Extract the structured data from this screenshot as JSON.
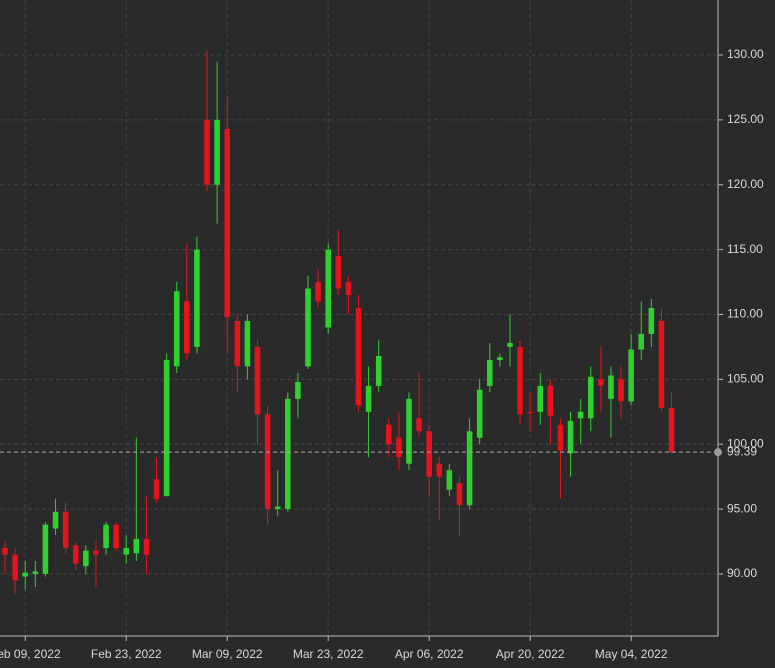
{
  "chart_data": {
    "type": "candlestick",
    "up_color": "#2fd12f",
    "down_color": "#e3141b",
    "open": [
      92.0,
      91.5,
      89.8,
      90.0,
      90.0,
      93.5,
      94.8,
      92.2,
      90.6,
      91.8,
      92.0,
      93.8,
      91.5,
      91.6,
      92.7,
      97.3,
      96.0,
      106.0,
      111.0,
      107.5,
      125.0,
      120.0,
      124.3,
      109.5,
      106.0,
      107.5,
      102.3,
      95.0,
      95.0,
      103.5,
      106.0,
      112.5,
      109.0,
      114.5,
      112.5,
      110.5,
      102.5,
      104.5,
      101.5,
      100.5,
      98.5,
      102.0,
      101.0,
      98.5,
      96.5,
      97.0,
      95.3,
      100.5,
      104.5,
      106.5,
      107.5,
      107.5,
      102.5,
      102.5,
      104.5,
      101.5,
      99.3,
      102.0,
      102.0,
      105.0,
      103.5,
      105.0,
      103.3,
      107.3,
      108.5,
      109.5,
      102.8
    ],
    "high": [
      92.5,
      92.0,
      91.0,
      91.0,
      94.0,
      95.8,
      95.5,
      92.5,
      92.2,
      92.5,
      94.0,
      94.0,
      93.0,
      100.5,
      96.0,
      99.0,
      107.0,
      112.5,
      115.5,
      116.0,
      130.3,
      129.5,
      126.8,
      110.0,
      110.0,
      108.0,
      103.0,
      98.0,
      104.0,
      105.5,
      113.0,
      113.5,
      115.5,
      116.5,
      113.0,
      111.5,
      106.0,
      108.0,
      102.0,
      102.5,
      104.0,
      105.5,
      101.5,
      99.0,
      98.5,
      97.5,
      102.0,
      105.0,
      107.8,
      107.0,
      110.0,
      108.0,
      104.0,
      105.5,
      105.0,
      102.0,
      102.5,
      103.5,
      106.0,
      107.5,
      106.0,
      106.0,
      108.5,
      111.0,
      111.2,
      110.5,
      104.0
    ],
    "low": [
      90.0,
      88.5,
      88.8,
      89.0,
      89.8,
      93.0,
      91.5,
      90.3,
      90.0,
      89.0,
      91.5,
      91.8,
      90.8,
      91.0,
      90.0,
      95.5,
      96.0,
      105.5,
      106.5,
      107.0,
      119.5,
      117.0,
      107.0,
      104.0,
      105.0,
      100.0,
      93.8,
      94.5,
      94.8,
      102.0,
      105.8,
      110.5,
      108.5,
      111.5,
      110.0,
      102.5,
      99.0,
      104.0,
      99.0,
      98.0,
      98.0,
      100.5,
      96.0,
      94.2,
      96.0,
      93.0,
      95.0,
      100.0,
      104.0,
      106.0,
      106.0,
      101.5,
      101.0,
      101.5,
      100.0,
      95.8,
      97.5,
      100.0,
      101.0,
      102.5,
      100.5,
      102.0,
      103.0,
      106.5,
      107.5,
      102.5,
      99.3
    ],
    "close": [
      91.5,
      89.5,
      90.1,
      90.2,
      93.8,
      94.8,
      92.0,
      90.8,
      91.8,
      91.5,
      93.8,
      92.0,
      92.0,
      92.7,
      91.5,
      95.8,
      106.5,
      111.8,
      107.0,
      115.0,
      120.0,
      125.0,
      109.8,
      106.0,
      109.5,
      102.3,
      95.0,
      95.2,
      103.5,
      104.8,
      112.0,
      111.0,
      115.0,
      112.0,
      111.5,
      103.0,
      104.5,
      106.8,
      100.0,
      99.0,
      103.5,
      101.0,
      97.5,
      97.5,
      98.0,
      95.3,
      101.0,
      104.2,
      106.5,
      106.7,
      107.8,
      102.3,
      102.4,
      104.5,
      102.2,
      99.5,
      101.8,
      102.5,
      105.2,
      104.5,
      105.3,
      103.3,
      107.3,
      108.5,
      110.5,
      102.8,
      99.4
    ],
    "last_price": 99.39,
    "xlim": [
      -0.5,
      70.6
    ],
    "xticks": [
      {
        "value": 2,
        "label": "Feb 09, 2022"
      },
      {
        "value": 12,
        "label": "Feb 23, 2022"
      },
      {
        "value": 22,
        "label": "Mar 09, 2022"
      },
      {
        "value": 32,
        "label": "Mar 23, 2022"
      },
      {
        "value": 42,
        "label": "Apr 06, 2022"
      },
      {
        "value": 52,
        "label": "Apr 20, 2022"
      },
      {
        "value": 62,
        "label": "May 04, 2022"
      }
    ],
    "ylim": [
      85.22,
      134.24
    ],
    "yticks": [
      {
        "value": 90,
        "label": "90.00"
      },
      {
        "value": 95,
        "label": "95.00"
      },
      {
        "value": 100,
        "label": "100.00"
      },
      {
        "value": 105,
        "label": "105.00"
      },
      {
        "value": 110,
        "label": "110.00"
      },
      {
        "value": 115,
        "label": "115.00"
      },
      {
        "value": 120,
        "label": "120.00"
      },
      {
        "value": 125,
        "label": "125.00"
      },
      {
        "value": 130,
        "label": "130.00"
      }
    ],
    "grid": true
  }
}
